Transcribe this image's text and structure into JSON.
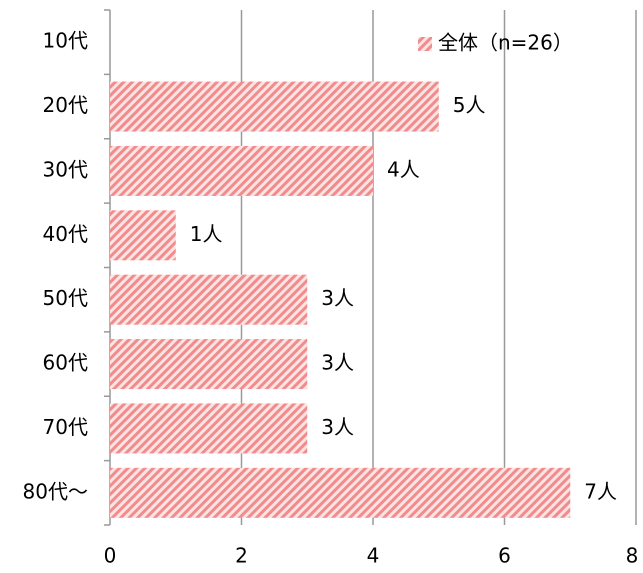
{
  "chart_data": {
    "type": "bar",
    "orientation": "horizontal",
    "categories": [
      "10代",
      "20代",
      "30代",
      "40代",
      "50代",
      "60代",
      "70代",
      "80代～"
    ],
    "series": [
      {
        "name": "全体（n=26）",
        "color": "#f08c8c",
        "values": [
          0,
          5,
          4,
          1,
          3,
          3,
          3,
          7
        ],
        "value_labels": [
          null,
          "5人",
          "4人",
          "1人",
          "3人",
          "3人",
          "3人",
          "7人"
        ]
      }
    ],
    "xlim": [
      0,
      8
    ],
    "xticks": [
      0,
      2,
      4,
      6,
      8
    ],
    "grid": true,
    "legend": "top-right"
  }
}
